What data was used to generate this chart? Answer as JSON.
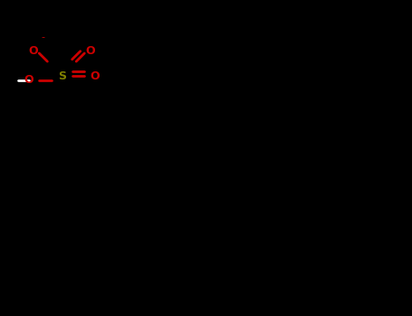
{
  "background_color": "#000000",
  "figsize": [
    4.55,
    3.5
  ],
  "dpi": 100,
  "bond_color_black": "#000000",
  "atom_colors": {
    "C": "#000000",
    "N": "#0000cc",
    "O": "#cc0000",
    "S": "#808000",
    "default": "#000000"
  },
  "line_color": "#ffffff",
  "bond_width": 1.5
}
